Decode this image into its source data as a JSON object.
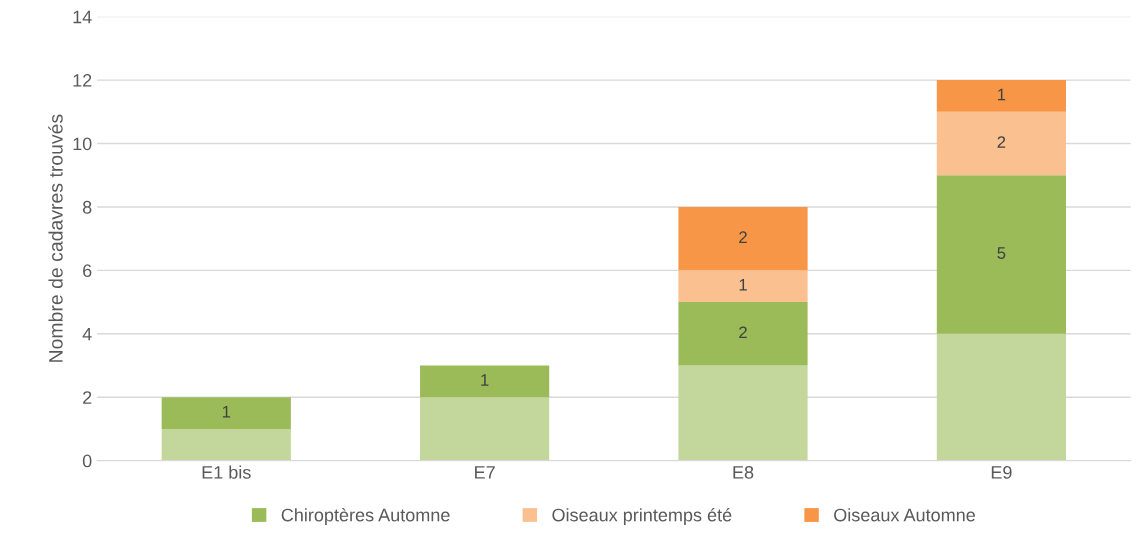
{
  "chart_data": {
    "type": "bar",
    "stacked": true,
    "ylabel": "Nombre de cadavres trouvés",
    "categories": [
      "E1 bis",
      "E7",
      "E8",
      "E9"
    ],
    "series": [
      {
        "color": "#c3d69b",
        "values": [
          1,
          2,
          3,
          4
        ],
        "value_labels": [
          null,
          null,
          null,
          null
        ]
      },
      {
        "name": "Chiroptères Automne",
        "color": "#9bbb59",
        "values": [
          1,
          1,
          2,
          5
        ],
        "value_labels": [
          "1",
          "1",
          "2",
          "5"
        ]
      },
      {
        "name": "Oiseaux printemps été",
        "color": "#fac090",
        "values": [
          null,
          null,
          1,
          2
        ],
        "value_labels": [
          null,
          null,
          "1",
          "2"
        ]
      },
      {
        "name": "Oiseaux Automne",
        "color": "#f79646",
        "values": [
          null,
          null,
          2,
          1
        ],
        "value_labels": [
          null,
          null,
          "2",
          "1"
        ]
      }
    ],
    "ylim": [
      0,
      14
    ],
    "yticks": [
      0,
      2,
      4,
      6,
      8,
      10,
      12,
      14
    ],
    "grid": "y",
    "legend": "bottom"
  }
}
